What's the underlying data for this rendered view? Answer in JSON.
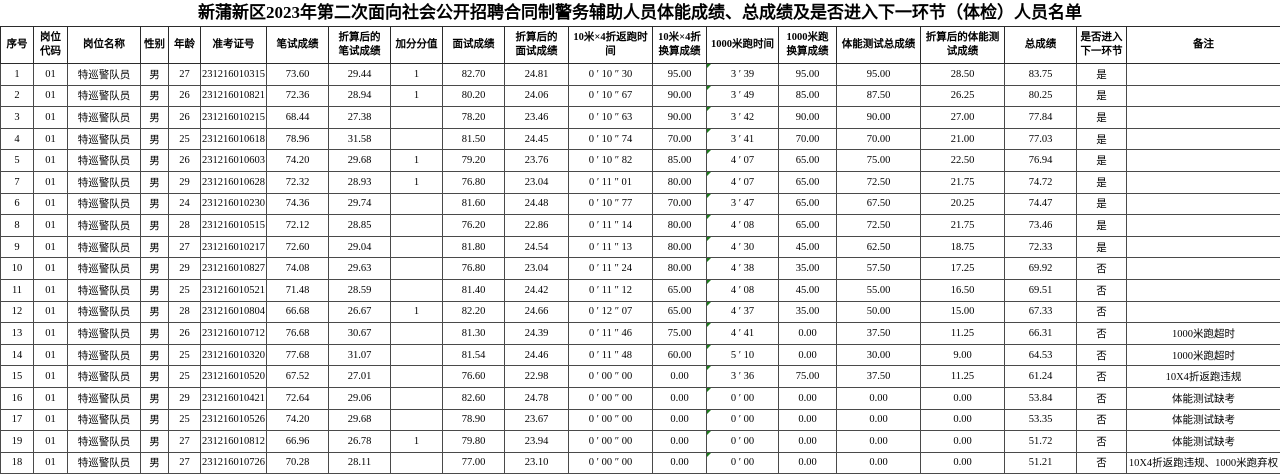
{
  "title": "新蒲新区2023年第二次面向社会公开招聘合同制警务辅助人员体能成绩、总成绩及是否进入下一环节（体检）人员名单",
  "comment_marker": {
    "color": "#1e7d1e",
    "column_index": 13,
    "icon": "cell-comment-triangle-icon"
  },
  "table": {
    "columns": [
      {
        "label": "序号"
      },
      {
        "label": "岗位\n代码"
      },
      {
        "label": "岗位名称"
      },
      {
        "label": "性别"
      },
      {
        "label": "年龄"
      },
      {
        "label": "准考证号"
      },
      {
        "label": "笔试成绩"
      },
      {
        "label": "折算后的\n笔试成绩"
      },
      {
        "label": "加分分值"
      },
      {
        "label": "面试成绩"
      },
      {
        "label": "折算后的\n面试成绩"
      },
      {
        "label": "10米×4折返跑时间"
      },
      {
        "label": "10米×4折\n换算成绩"
      },
      {
        "label": "1000米跑时间"
      },
      {
        "label": "1000米跑\n换算成绩"
      },
      {
        "label": "体能测试总成绩"
      },
      {
        "label": "折算后的体能测\n试成绩"
      },
      {
        "label": "总成绩"
      },
      {
        "label": "是否进入\n下一环节"
      },
      {
        "label": "备注"
      }
    ],
    "rows": [
      [
        "1",
        "01",
        "特巡警队员",
        "男",
        "27",
        "231216010315",
        "73.60",
        "29.44",
        "1",
        "82.70",
        "24.81",
        "0 ′ 10 ″ 30",
        "95.00",
        "3 ′ 39",
        "95.00",
        "95.00",
        "28.50",
        "83.75",
        "是",
        ""
      ],
      [
        "2",
        "01",
        "特巡警队员",
        "男",
        "26",
        "231216010821",
        "72.36",
        "28.94",
        "1",
        "80.20",
        "24.06",
        "0 ′ 10 ″ 67",
        "90.00",
        "3 ′ 49",
        "85.00",
        "87.50",
        "26.25",
        "80.25",
        "是",
        ""
      ],
      [
        "3",
        "01",
        "特巡警队员",
        "男",
        "26",
        "231216010215",
        "68.44",
        "27.38",
        "",
        "78.20",
        "23.46",
        "0 ′ 10 ″ 63",
        "90.00",
        "3 ′ 42",
        "90.00",
        "90.00",
        "27.00",
        "77.84",
        "是",
        ""
      ],
      [
        "4",
        "01",
        "特巡警队员",
        "男",
        "25",
        "231216010618",
        "78.96",
        "31.58",
        "",
        "81.50",
        "24.45",
        "0 ′ 10 ″ 74",
        "70.00",
        "3 ′ 41",
        "70.00",
        "70.00",
        "21.00",
        "77.03",
        "是",
        ""
      ],
      [
        "5",
        "01",
        "特巡警队员",
        "男",
        "26",
        "231216010603",
        "74.20",
        "29.68",
        "1",
        "79.20",
        "23.76",
        "0 ′ 10 ″ 82",
        "85.00",
        "4 ′ 07",
        "65.00",
        "75.00",
        "22.50",
        "76.94",
        "是",
        ""
      ],
      [
        "7",
        "01",
        "特巡警队员",
        "男",
        "29",
        "231216010628",
        "72.32",
        "28.93",
        "1",
        "76.80",
        "23.04",
        "0 ′ 11 ″ 01",
        "80.00",
        "4 ′ 07",
        "65.00",
        "72.50",
        "21.75",
        "74.72",
        "是",
        ""
      ],
      [
        "6",
        "01",
        "特巡警队员",
        "男",
        "24",
        "231216010230",
        "74.36",
        "29.74",
        "",
        "81.60",
        "24.48",
        "0 ′ 10 ″ 77",
        "70.00",
        "3 ′ 47",
        "65.00",
        "67.50",
        "20.25",
        "74.47",
        "是",
        ""
      ],
      [
        "8",
        "01",
        "特巡警队员",
        "男",
        "28",
        "231216010515",
        "72.12",
        "28.85",
        "",
        "76.20",
        "22.86",
        "0 ′ 11 ″ 14",
        "80.00",
        "4 ′ 08",
        "65.00",
        "72.50",
        "21.75",
        "73.46",
        "是",
        ""
      ],
      [
        "9",
        "01",
        "特巡警队员",
        "男",
        "27",
        "231216010217",
        "72.60",
        "29.04",
        "",
        "81.80",
        "24.54",
        "0 ′ 11 ″ 13",
        "80.00",
        "4 ′ 30",
        "45.00",
        "62.50",
        "18.75",
        "72.33",
        "是",
        ""
      ],
      [
        "10",
        "01",
        "特巡警队员",
        "男",
        "29",
        "231216010827",
        "74.08",
        "29.63",
        "",
        "76.80",
        "23.04",
        "0 ′ 11 ″ 24",
        "80.00",
        "4 ′ 38",
        "35.00",
        "57.50",
        "17.25",
        "69.92",
        "否",
        ""
      ],
      [
        "11",
        "01",
        "特巡警队员",
        "男",
        "25",
        "231216010521",
        "71.48",
        "28.59",
        "",
        "81.40",
        "24.42",
        "0 ′ 11 ″ 12",
        "65.00",
        "4 ′ 08",
        "45.00",
        "55.00",
        "16.50",
        "69.51",
        "否",
        ""
      ],
      [
        "12",
        "01",
        "特巡警队员",
        "男",
        "28",
        "231216010804",
        "66.68",
        "26.67",
        "1",
        "82.20",
        "24.66",
        "0 ′ 12 ″ 07",
        "65.00",
        "4 ′ 37",
        "35.00",
        "50.00",
        "15.00",
        "67.33",
        "否",
        ""
      ],
      [
        "13",
        "01",
        "特巡警队员",
        "男",
        "26",
        "231216010712",
        "76.68",
        "30.67",
        "",
        "81.30",
        "24.39",
        "0 ′ 11 ″ 46",
        "75.00",
        "4 ′ 41",
        "0.00",
        "37.50",
        "11.25",
        "66.31",
        "否",
        "1000米跑超时"
      ],
      [
        "14",
        "01",
        "特巡警队员",
        "男",
        "25",
        "231216010320",
        "77.68",
        "31.07",
        "",
        "81.54",
        "24.46",
        "0 ′ 11 ″ 48",
        "60.00",
        "5 ′ 10",
        "0.00",
        "30.00",
        "9.00",
        "64.53",
        "否",
        "1000米跑超时"
      ],
      [
        "15",
        "01",
        "特巡警队员",
        "男",
        "25",
        "231216010520",
        "67.52",
        "27.01",
        "",
        "76.60",
        "22.98",
        "0 ′ 00 ″ 00",
        "0.00",
        "3 ′ 36",
        "75.00",
        "37.50",
        "11.25",
        "61.24",
        "否",
        "10X4折返跑违规"
      ],
      [
        "16",
        "01",
        "特巡警队员",
        "男",
        "29",
        "231216010421",
        "72.64",
        "29.06",
        "",
        "82.60",
        "24.78",
        "0 ′ 00 ″ 00",
        "0.00",
        "0 ′ 00",
        "0.00",
        "0.00",
        "0.00",
        "53.84",
        "否",
        "体能测试缺考"
      ],
      [
        "17",
        "01",
        "特巡警队员",
        "男",
        "25",
        "231216010526",
        "74.20",
        "29.68",
        "",
        "78.90",
        "23.67",
        "0 ′ 00 ″ 00",
        "0.00",
        "0 ′ 00",
        "0.00",
        "0.00",
        "0.00",
        "53.35",
        "否",
        "体能测试缺考"
      ],
      [
        "19",
        "01",
        "特巡警队员",
        "男",
        "27",
        "231216010812",
        "66.96",
        "26.78",
        "1",
        "79.80",
        "23.94",
        "0 ′ 00 ″ 00",
        "0.00",
        "0 ′ 00",
        "0.00",
        "0.00",
        "0.00",
        "51.72",
        "否",
        "体能测试缺考"
      ],
      [
        "18",
        "01",
        "特巡警队员",
        "男",
        "27",
        "231216010726",
        "70.28",
        "28.11",
        "",
        "77.00",
        "23.10",
        "0 ′ 00 ″ 00",
        "0.00",
        "0 ′ 00",
        "0.00",
        "0.00",
        "0.00",
        "51.21",
        "否",
        "10X4折返跑违规、1000米跑弃权"
      ]
    ]
  }
}
